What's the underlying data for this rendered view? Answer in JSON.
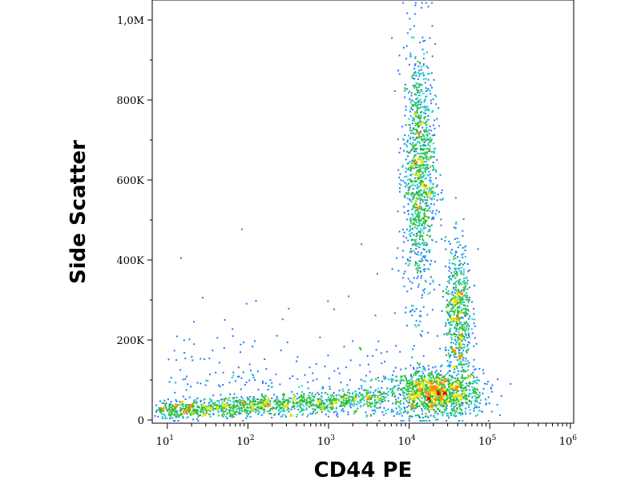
{
  "chart_data": {
    "type": "scatter",
    "subtype": "flow-cytometry-density-dot-plot",
    "xlabel": "CD44 PE",
    "ylabel": "Side Scatter",
    "x_scale": "log",
    "xlim": [
      6.5,
      1100000
    ],
    "ylim": [
      -8000,
      1050000
    ],
    "x_ticks": [
      {
        "value": 10,
        "base": "10",
        "exp": "1"
      },
      {
        "value": 100,
        "base": "10",
        "exp": "2"
      },
      {
        "value": 1000,
        "base": "10",
        "exp": "3"
      },
      {
        "value": 10000,
        "base": "10",
        "exp": "4"
      },
      {
        "value": 100000,
        "base": "10",
        "exp": "5"
      },
      {
        "value": 1000000,
        "base": "10",
        "exp": "6"
      }
    ],
    "y_ticks": [
      {
        "value": 0,
        "label": "0"
      },
      {
        "value": 200000,
        "label": "200K"
      },
      {
        "value": 400000,
        "label": "400K"
      },
      {
        "value": 600000,
        "label": "600K"
      },
      {
        "value": 800000,
        "label": "800K"
      },
      {
        "value": 1000000,
        "label": "1,0M"
      }
    ],
    "grid": false,
    "legend": "none",
    "density_colors": [
      "#1a10c8",
      "#1e78ff",
      "#17c8c8",
      "#2fbf3a",
      "#e6e000",
      "#ff8c00",
      "#e00000"
    ],
    "populations": [
      {
        "x_center": 20000,
        "y_center": 70000,
        "spread_log": 0.3,
        "y_spread": 28000,
        "weight": 0.22,
        "peak_density": "red"
      },
      {
        "x_center": 13000,
        "y_center": 620000,
        "spread_log": 0.1,
        "y_spread": 160000,
        "weight": 0.22,
        "peak_density": "green"
      },
      {
        "x_center": 40000,
        "y_center": 260000,
        "spread_log": 0.08,
        "y_spread": 90000,
        "weight": 0.12,
        "peak_density": "cyan"
      },
      {
        "x_start": 8,
        "x_end": 4000,
        "y_start": 25000,
        "y_end": 55000,
        "weight": 0.2,
        "peak_density": "blue"
      }
    ]
  }
}
